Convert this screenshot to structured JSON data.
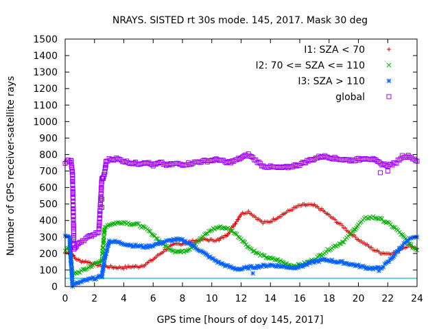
{
  "chart_data": {
    "type": "scatter",
    "title": "NRAYS. SISTED rt 30s mode. 145, 2017. Mask 30 deg",
    "xlabel": "GPS time [hours of doy 145, 2017]",
    "ylabel": "Number of GPS receiver-satellite rays",
    "xlim": [
      0,
      24
    ],
    "ylim": [
      0,
      1500
    ],
    "xticks": [
      0,
      2,
      4,
      6,
      8,
      10,
      12,
      14,
      16,
      18,
      20,
      22,
      24
    ],
    "yticks": [
      0,
      100,
      200,
      300,
      400,
      500,
      600,
      700,
      800,
      900,
      1000,
      1100,
      1200,
      1300,
      1400,
      1500
    ],
    "legend_position": "top-right",
    "threshold_line": {
      "y": 50,
      "color": "#00c0c0"
    },
    "series": [
      {
        "name": "I1: SZA < 70",
        "marker": "+",
        "color": "#e00000",
        "x": [
          0.0,
          0.3,
          0.5,
          0.7,
          1.0,
          1.5,
          2.0,
          2.5,
          3.0,
          3.5,
          4.0,
          4.5,
          5.0,
          5.5,
          6.0,
          6.5,
          7.0,
          7.5,
          8.0,
          8.5,
          9.0,
          9.5,
          10.0,
          10.5,
          11.0,
          11.5,
          12.0,
          12.5,
          13.0,
          13.5,
          14.0,
          14.5,
          15.0,
          15.5,
          16.0,
          16.5,
          17.0,
          17.5,
          18.0,
          18.5,
          19.0,
          19.5,
          20.0,
          20.5,
          21.0,
          21.5,
          22.0,
          22.5,
          23.0,
          23.5,
          24.0
        ],
        "y": [
          200,
          215,
          190,
          170,
          155,
          150,
          135,
          125,
          120,
          115,
          115,
          120,
          120,
          135,
          165,
          200,
          235,
          255,
          260,
          270,
          280,
          285,
          280,
          285,
          310,
          370,
          440,
          455,
          420,
          385,
          395,
          420,
          445,
          470,
          490,
          495,
          490,
          465,
          430,
          395,
          360,
          320,
          285,
          255,
          225,
          205,
          200,
          205,
          235,
          250,
          230
        ]
      },
      {
        "name": "I2: 70 <= SZA <= 110",
        "marker": "x",
        "color": "#00b000",
        "x": [
          0.0,
          0.3,
          0.5,
          0.7,
          1.0,
          1.5,
          2.0,
          2.5,
          2.7,
          3.0,
          3.5,
          4.0,
          4.5,
          5.0,
          5.5,
          6.0,
          6.5,
          7.0,
          7.5,
          8.0,
          8.5,
          9.0,
          9.5,
          10.0,
          10.5,
          11.0,
          11.5,
          12.0,
          12.5,
          13.0,
          13.5,
          14.0,
          14.5,
          15.0,
          15.5,
          16.0,
          16.5,
          17.0,
          17.5,
          18.0,
          18.5,
          19.0,
          19.5,
          20.0,
          20.5,
          21.0,
          21.5,
          22.0,
          22.5,
          23.0,
          23.5,
          24.0
        ],
        "y": [
          220,
          240,
          70,
          80,
          90,
          110,
          135,
          155,
          360,
          375,
          385,
          390,
          380,
          375,
          350,
          315,
          270,
          235,
          215,
          210,
          230,
          270,
          310,
          345,
          360,
          355,
          330,
          290,
          240,
          205,
          185,
          170,
          160,
          140,
          125,
          130,
          145,
          165,
          195,
          225,
          250,
          275,
          320,
          375,
          415,
          420,
          410,
          385,
          355,
          310,
          255,
          220
        ]
      },
      {
        "name": "I3: SZA > 110",
        "marker": "*",
        "color": "#0060ff",
        "x": [
          0.0,
          0.3,
          0.5,
          0.7,
          1.0,
          1.5,
          2.0,
          2.5,
          2.7,
          3.0,
          3.5,
          4.0,
          4.5,
          5.0,
          5.5,
          6.0,
          6.5,
          7.0,
          7.5,
          8.0,
          8.5,
          9.0,
          9.5,
          10.0,
          10.5,
          11.0,
          11.5,
          12.0,
          12.5,
          13.0,
          13.5,
          14.0,
          14.5,
          15.0,
          15.5,
          16.0,
          16.5,
          17.0,
          17.5,
          18.0,
          18.5,
          19.0,
          19.5,
          20.0,
          20.5,
          21.0,
          21.5,
          22.0,
          22.5,
          23.0,
          23.5,
          24.0
        ],
        "y": [
          310,
          305,
          5,
          15,
          25,
          40,
          50,
          60,
          170,
          275,
          270,
          260,
          250,
          245,
          240,
          250,
          265,
          275,
          285,
          280,
          260,
          230,
          200,
          170,
          145,
          125,
          110,
          105,
          115,
          120,
          125,
          130,
          125,
          120,
          115,
          120,
          135,
          150,
          160,
          160,
          150,
          145,
          135,
          125,
          115,
          110,
          110,
          145,
          195,
          250,
          285,
          300
        ]
      },
      {
        "name": "global",
        "marker": "square",
        "color": "#a000ff",
        "x": [
          0.0,
          0.2,
          0.4,
          0.5,
          0.6,
          0.7,
          1.0,
          1.5,
          2.0,
          2.3,
          2.5,
          2.6,
          2.7,
          2.8,
          3.0,
          3.5,
          4.0,
          4.5,
          5.0,
          5.5,
          6.0,
          6.5,
          7.0,
          7.5,
          8.0,
          8.5,
          9.0,
          9.5,
          10.0,
          10.5,
          11.0,
          11.5,
          12.0,
          12.5,
          13.0,
          13.5,
          14.0,
          14.5,
          15.0,
          15.5,
          16.0,
          16.5,
          17.0,
          17.5,
          18.0,
          18.5,
          19.0,
          19.5,
          20.0,
          20.5,
          21.0,
          21.5,
          22.0,
          22.5,
          23.0,
          23.5,
          24.0
        ],
        "y": [
          750,
          760,
          765,
          680,
          230,
          235,
          270,
          295,
          320,
          335,
          650,
          660,
          690,
          760,
          770,
          775,
          760,
          750,
          745,
          755,
          735,
          750,
          735,
          745,
          740,
          745,
          755,
          760,
          765,
          770,
          750,
          760,
          780,
          800,
          765,
          730,
          725,
          720,
          720,
          730,
          740,
          760,
          775,
          790,
          785,
          775,
          770,
          765,
          770,
          780,
          770,
          745,
          735,
          745,
          790,
          790,
          760
        ]
      }
    ],
    "outliers": {
      "global": {
        "x": [
          0.5,
          2.5,
          2.5,
          21.5,
          22.0
        ],
        "y": [
          680,
          480,
          530,
          690,
          700
        ]
      },
      "I1: SZA < 70": {
        "x": [
          0.5,
          10.5
        ],
        "y": [
          190,
          280
        ]
      },
      "I3: SZA > 110": {
        "x": [
          12.8,
          21.4
        ],
        "y": [
          80,
          95
        ]
      }
    }
  }
}
